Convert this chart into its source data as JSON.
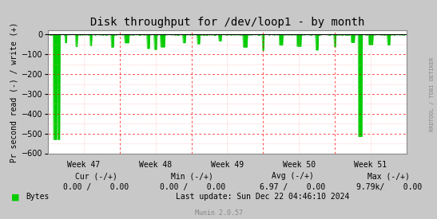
{
  "title": "Disk throughput for /dev/loop1 - by month",
  "ylabel": "Pr second read (-) / write (+)",
  "xlabel_ticks": [
    "Week 47",
    "Week 48",
    "Week 49",
    "Week 50",
    "Week 51"
  ],
  "ylim": [
    -600,
    20
  ],
  "yticks": [
    0,
    -100,
    -200,
    -300,
    -400,
    -500,
    -600
  ],
  "bg_color": "#c8c8c8",
  "plot_bg_color": "#ffffff",
  "grid_color_major": "#ff0000",
  "grid_color_minor": "#ff9999",
  "line_color": "#00cc00",
  "fill_color": "#00cc00",
  "zero_line_color": "#000000",
  "border_color": "#000000",
  "title_color": "#000000",
  "axis_color": "#000000",
  "right_label": "RRDTOOL / TOBI OETIKER",
  "legend_label": "Bytes",
  "legend_color": "#00cc00",
  "footer_left": "Cur (-/+)         0.00 /    0.00",
  "footer_min": "Min (-/+)    0.00 /    0.00",
  "footer_avg": "Avg (-/+)    6.97 /    0.00",
  "footer_max": "Max (-/+)   9.79k/    0.00",
  "footer_update": "Last update: Sun Dec 22 04:46:10 2024",
  "munin_label": "Munin 2.0.57",
  "num_points": 800
}
